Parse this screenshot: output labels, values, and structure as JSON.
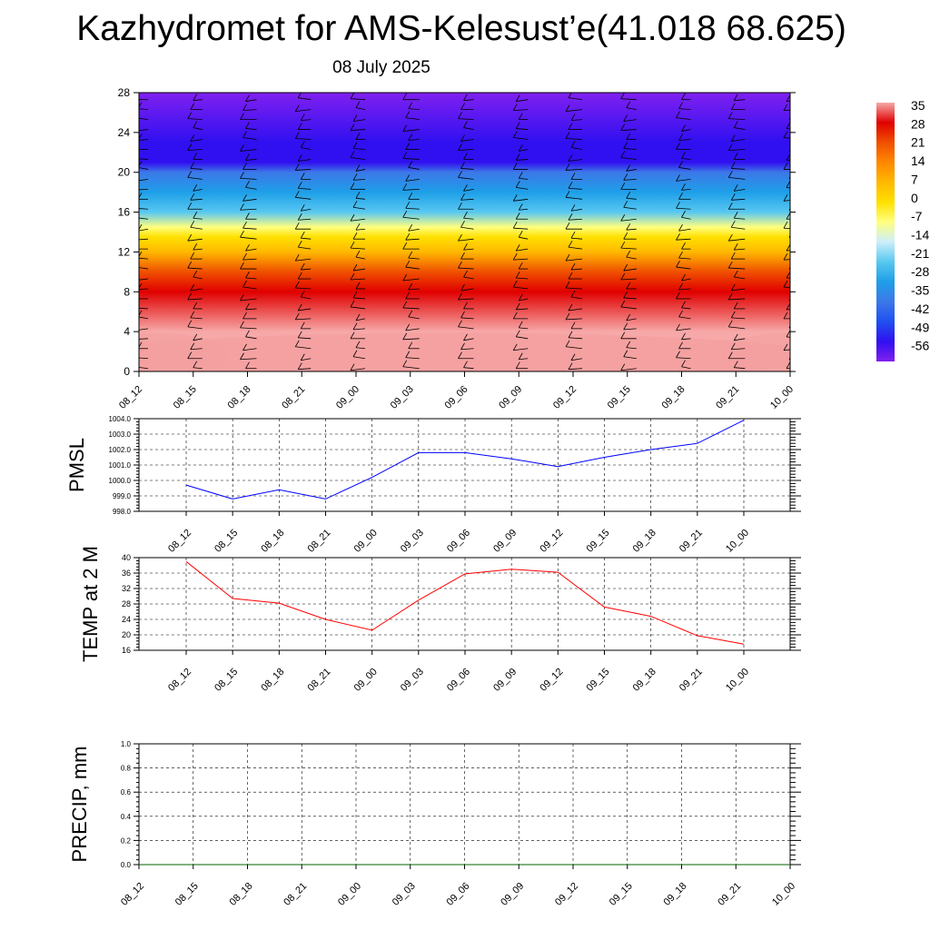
{
  "header": {
    "title": "Kazhydromet for AMS-Kelesust’e(41.018 68.625)",
    "date": "08 July 2025"
  },
  "colors": {
    "pmsl_line": "#0000ff",
    "temp_line": "#ff0000",
    "precip_line": "#006400",
    "grid": "#000000"
  },
  "chart_data": [
    {
      "type": "heatmap",
      "title": "Kazhydromet for AMS-Kelesust’e(41.018 68.625)",
      "subtitle": "08 July 2025",
      "x": [
        "08_12",
        "08_15",
        "08_18",
        "08_21",
        "09_00",
        "09_03",
        "09_06",
        "09_09",
        "09_12",
        "09_15",
        "09_18",
        "09_21",
        "10_00"
      ],
      "ylim": [
        0,
        28
      ],
      "yticks": [
        0,
        4,
        8,
        12,
        16,
        20,
        24,
        28
      ],
      "colorbar": {
        "labels": [
          "35",
          "28",
          "21",
          "14",
          "7",
          "0",
          "-7",
          "-14",
          "-21",
          "-28",
          "-35",
          "-42",
          "-49",
          "-56"
        ],
        "colors": [
          "#f7a8a8",
          "#e00000",
          "#f05000",
          "#ff8800",
          "#ffb800",
          "#ffe000",
          "#ffff80",
          "#cdeefa",
          "#58c8f0",
          "#1e9fe8",
          "#3c78e8",
          "#2050f0",
          "#3010f0",
          "#8020f0"
        ]
      },
      "temperature_profile": [
        {
          "height": 0,
          "value": 38
        },
        {
          "height": 4,
          "value": 30
        },
        {
          "height": 8,
          "value": 21
        },
        {
          "height": 10,
          "value": 14
        },
        {
          "height": 12,
          "value": 5
        },
        {
          "height": 13.5,
          "value": -6
        },
        {
          "height": 14.5,
          "value": -14
        },
        {
          "height": 16,
          "value": -22
        },
        {
          "height": 18,
          "value": -30
        },
        {
          "height": 20,
          "value": -42
        },
        {
          "height": 21,
          "value": -52
        },
        {
          "height": 23,
          "value": -56
        },
        {
          "height": 28,
          "value": -57
        }
      ],
      "wind_barbs": true
    },
    {
      "type": "line",
      "ylabel": "PMSL",
      "categories": [
        "08_12",
        "08_15",
        "08_18",
        "08_21",
        "09_00",
        "09_03",
        "09_06",
        "09_09",
        "09_12",
        "09_15",
        "09_18",
        "09_21",
        "10_00"
      ],
      "values": [
        999.7,
        998.8,
        999.4,
        998.8,
        1000.2,
        1001.8,
        1001.8,
        1001.4,
        1000.9,
        1001.5,
        1002.0,
        1002.4,
        1003.9
      ],
      "ylim": [
        998.0,
        1004.0
      ],
      "yticks": [
        "998.0",
        "999.0",
        "1000.0",
        "1001.0",
        "1002.0",
        "1003.0",
        "1004.0"
      ],
      "grid": true
    },
    {
      "type": "line",
      "ylabel": "TEMP at 2 M",
      "categories": [
        "08_12",
        "08_15",
        "08_18",
        "08_21",
        "09_00",
        "09_03",
        "09_06",
        "09_09",
        "09_12",
        "09_15",
        "09_18",
        "09_21",
        "10_00"
      ],
      "values": [
        39.0,
        29.4,
        28.2,
        24.0,
        21.2,
        29.0,
        35.8,
        37.0,
        36.2,
        27.2,
        24.8,
        19.8,
        17.6
      ],
      "ylim": [
        16,
        40
      ],
      "yticks": [
        "16",
        "20",
        "24",
        "28",
        "32",
        "36",
        "40"
      ],
      "grid": true
    },
    {
      "type": "line",
      "ylabel": "PRECIP, mm",
      "categories": [
        "08_12",
        "08_15",
        "08_18",
        "08_21",
        "09_00",
        "09_03",
        "09_06",
        "09_09",
        "09_12",
        "09_15",
        "09_18",
        "09_21",
        "10_00"
      ],
      "values": [
        0,
        0,
        0,
        0,
        0,
        0,
        0,
        0,
        0,
        0,
        0,
        0,
        0
      ],
      "ylim": [
        0,
        1
      ],
      "yticks": [
        "0.0",
        "0.2",
        "0.4",
        "0.6",
        "0.8",
        "1.0"
      ],
      "grid": true
    }
  ]
}
